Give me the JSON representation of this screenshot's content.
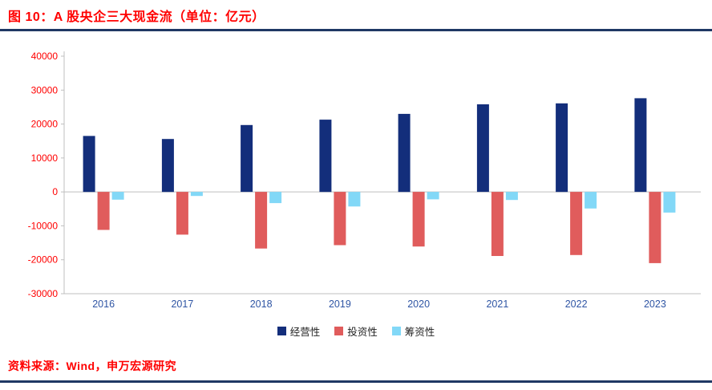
{
  "chart_data": {
    "type": "bar",
    "title": "图 10：A 股央企三大现金流（单位：亿元）",
    "categories": [
      "2016",
      "2017",
      "2018",
      "2019",
      "2020",
      "2021",
      "2022",
      "2023"
    ],
    "series": [
      {
        "name": "经营性",
        "color": "#132e7b",
        "values": [
          16500,
          15600,
          19700,
          21300,
          23000,
          25800,
          26100,
          27600
        ]
      },
      {
        "name": "投资性",
        "color": "#e05c5c",
        "values": [
          -11200,
          -12600,
          -16700,
          -15700,
          -16100,
          -18900,
          -18600,
          -21000
        ]
      },
      {
        "name": "筹资性",
        "color": "#82d8f7",
        "values": [
          -2300,
          -1200,
          -3300,
          -4300,
          -2200,
          -2400,
          -4900,
          -6100
        ]
      }
    ],
    "ylim": [
      -30000,
      40000
    ],
    "ytick_step": 10000,
    "xlabel": "",
    "ylabel": "",
    "grid": false,
    "legend_position": "bottom"
  },
  "source": {
    "text": "资料来源：Wind，申万宏源研究"
  },
  "colors": {
    "title_red": "#ff0000",
    "rule_navy": "#1f3864",
    "y_tick_label": "#ff0000",
    "x_tick_label": "#2f55a4",
    "axis": "#bfbfbf",
    "legend_text": "#1f1f1f"
  }
}
